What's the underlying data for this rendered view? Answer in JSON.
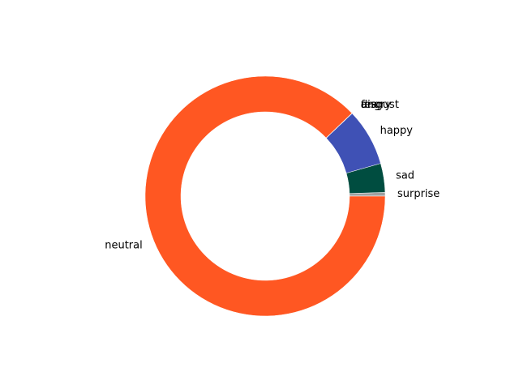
{
  "chart_data": {
    "type": "pie",
    "donut": true,
    "start_angle_deg": 0,
    "direction": "counterclockwise",
    "labels": [
      "surprise",
      "sad",
      "happy",
      "fear",
      "disgust",
      "angry",
      "neutral"
    ],
    "values": [
      0.5,
      3.9,
      7.7,
      0.02,
      0.02,
      0.02,
      87.86
    ],
    "colors": [
      "#a0a0a0",
      "#004d40",
      "#3f51b5",
      "#9e9e9e",
      "#757575",
      "#e53935",
      "#ff5722"
    ],
    "title": "",
    "legend": "none"
  }
}
